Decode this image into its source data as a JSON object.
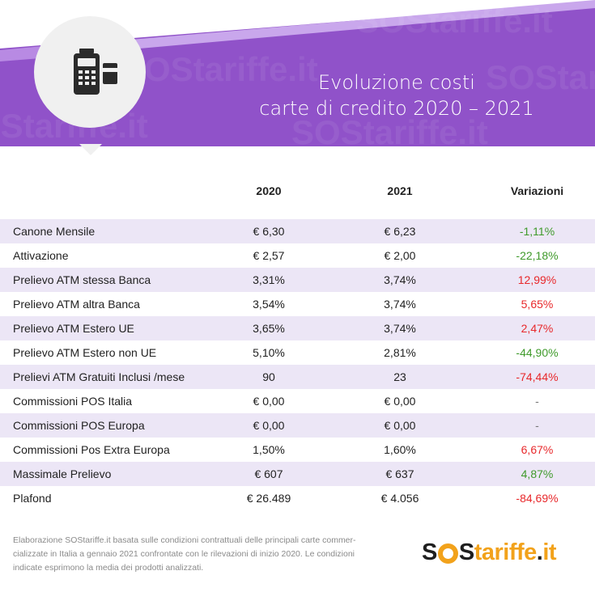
{
  "header": {
    "title_line1": "Evoluzione costi",
    "title_line2": "carte di credito 2020 – 2021",
    "watermark": "SOStariffe.it",
    "icon": "pos-terminal-icon",
    "colors": {
      "purple": "#9052c9",
      "purple_light": "#c9a7ec",
      "badge": "#f0f0f0"
    }
  },
  "table": {
    "columns": [
      "",
      "2020",
      "2021",
      "Variazioni"
    ],
    "rows": [
      {
        "label": "Canone Mensile",
        "y2020": "€ 6,30",
        "y2021": "€ 6,23",
        "variation": "-1,11%",
        "trend": "neg"
      },
      {
        "label": "Attivazione",
        "y2020": "€ 2,57",
        "y2021": "€ 2,00",
        "variation": "-22,18%",
        "trend": "neg"
      },
      {
        "label": "Prelievo ATM stessa Banca",
        "y2020": "3,31%",
        "y2021": "3,74%",
        "variation": "12,99%",
        "trend": "pos"
      },
      {
        "label": "Prelievo ATM altra Banca",
        "y2020": "3,54%",
        "y2021": "3,74%",
        "variation": "5,65%",
        "trend": "pos"
      },
      {
        "label": "Prelievo ATM Estero UE",
        "y2020": "3,65%",
        "y2021": "3,74%",
        "variation": "2,47%",
        "trend": "pos"
      },
      {
        "label": "Prelievo ATM Estero non UE",
        "y2020": "5,10%",
        "y2021": "2,81%",
        "variation": "-44,90%",
        "trend": "neg"
      },
      {
        "label": "Prelievi ATM Gratuiti Inclusi /mese",
        "y2020": "90",
        "y2021": "23",
        "variation": "-74,44%",
        "trend": "pos"
      },
      {
        "label": "Commissioni POS Italia",
        "y2020": "€ 0,00",
        "y2021": "€ 0,00",
        "variation": "-",
        "trend": "neutral"
      },
      {
        "label": "Commissioni POS Europa",
        "y2020": "€ 0,00",
        "y2021": "€ 0,00",
        "variation": "-",
        "trend": "neutral"
      },
      {
        "label": "Commissioni Pos Extra Europa",
        "y2020": "1,50%",
        "y2021": "1,60%",
        "variation": "6,67%",
        "trend": "pos"
      },
      {
        "label": "Massimale Prelievo",
        "y2020": "€ 607",
        "y2021": "€ 637",
        "variation": "4,87%",
        "trend": "neg"
      },
      {
        "label": "Plafond",
        "y2020": "€ 26.489",
        "y2021": "€ 4.056",
        "variation": "-84,69%",
        "trend": "pos"
      }
    ],
    "colors": {
      "stripe": "#ece6f6",
      "decrease_green": "#3f9a2b",
      "increase_red": "#e8282b"
    }
  },
  "footnote": {
    "line1": "Elaborazione SOStariffe.it basata sulle condizioni contrattuali delle principali carte commer-",
    "line2": "cializzate in Italia a gennaio 2021 confrontate con le rilevazioni di inizio 2020. Le condizioni",
    "line3": "indicate esprimono la media dei prodotti analizzati."
  },
  "logo": {
    "text": "SOStariffe.it",
    "colors": {
      "dark": "#1f1f1f",
      "orange": "#f2a21b"
    }
  }
}
